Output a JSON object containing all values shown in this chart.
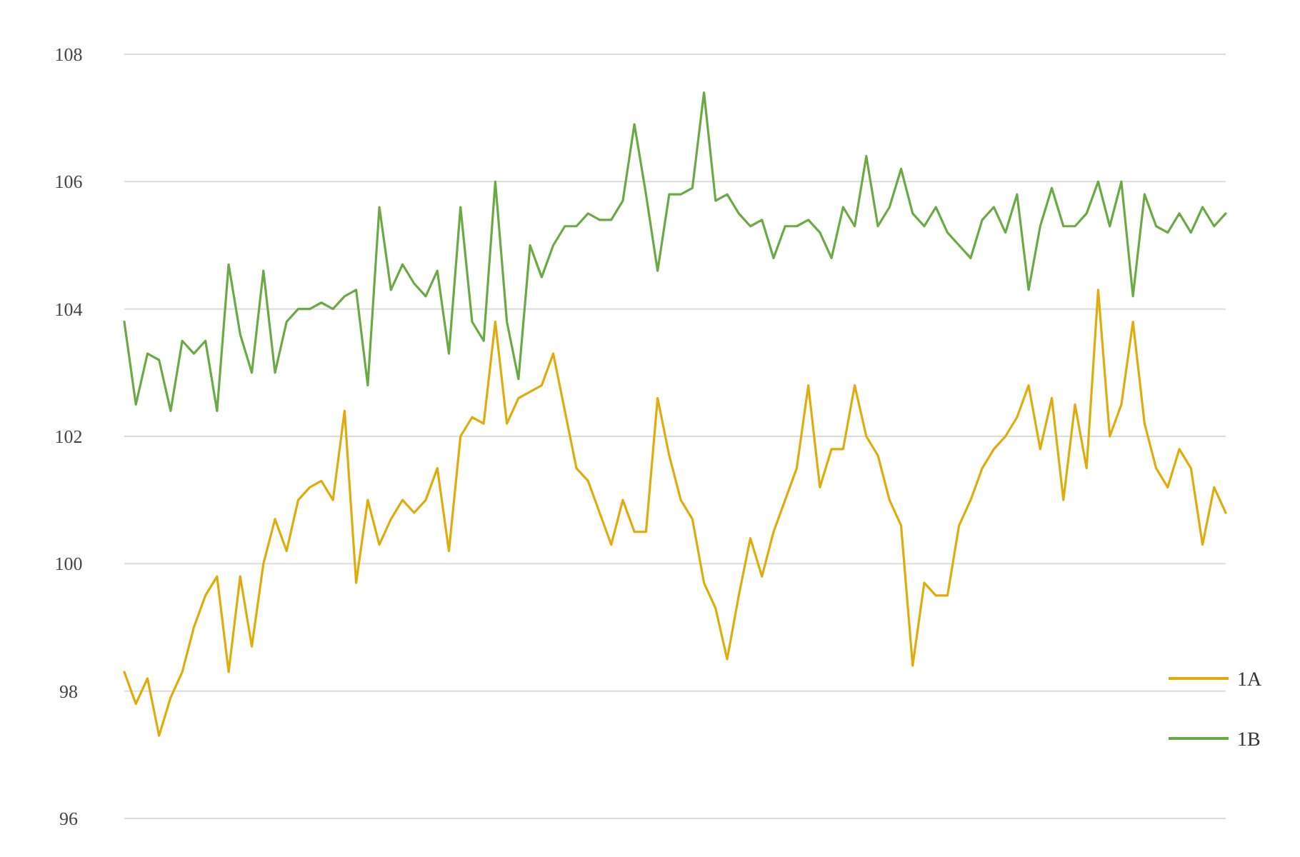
{
  "chart_data": {
    "type": "line",
    "categories": [
      null,
      null,
      null,
      null,
      null,
      null,
      null,
      null,
      null,
      null,
      null,
      null,
      null,
      null,
      null,
      null,
      null,
      null,
      null,
      null,
      null,
      null,
      null,
      null,
      null,
      null,
      null,
      null,
      null,
      null,
      null,
      null,
      null,
      null,
      null,
      null,
      null,
      null,
      null,
      null,
      null,
      null,
      null,
      null,
      null,
      null,
      null,
      null,
      null,
      null,
      null,
      null,
      null,
      null,
      null,
      null,
      null,
      null,
      null,
      null,
      null,
      null,
      null,
      null,
      null,
      null,
      null,
      null,
      null,
      null,
      null,
      null,
      null,
      null,
      null,
      null,
      null,
      null,
      null,
      null,
      null,
      null,
      null,
      null,
      null,
      null,
      null,
      null,
      null,
      null,
      null,
      null,
      null,
      null,
      null,
      null
    ],
    "series": [
      {
        "name": "1A",
        "color": "#e0ac0c",
        "values": [
          98.3,
          97.8,
          98.2,
          97.3,
          97.9,
          98.3,
          99,
          99.5,
          99.8,
          98.3,
          99.8,
          98.7,
          100,
          100.7,
          100.2,
          101,
          101.2,
          101.3,
          101,
          102.4,
          99.7,
          101,
          100.3,
          100.7,
          101,
          100.8,
          101,
          101.5,
          100.2,
          102,
          102.3,
          102.2,
          103.8,
          102.2,
          102.6,
          102.7,
          102.8,
          103.3,
          102.4,
          101.5,
          101.3,
          100.8,
          100.3,
          101,
          100.5,
          100.5,
          102.6,
          101.7,
          101,
          100.7,
          99.7,
          99.3,
          98.5,
          99.5,
          100.4,
          99.8,
          100.5,
          101,
          101.5,
          102.8,
          101.2,
          101.8,
          101.8,
          102.8,
          102,
          101.7,
          101,
          100.6,
          98.4,
          99.7,
          99.5,
          99.5,
          100.6,
          101,
          101.5,
          101.8,
          102,
          102.3,
          102.8,
          101.8,
          102.6,
          101,
          102.5,
          101.5,
          104.3,
          102,
          102.5,
          103.8,
          102.2,
          101.5,
          101.2,
          101.8,
          101.5,
          100.3,
          101.2,
          100.8
        ]
      },
      {
        "name": "1B",
        "color": "#6aaa44",
        "values": [
          103.8,
          102.5,
          103.3,
          103.2,
          102.4,
          103.5,
          103.3,
          103.5,
          102.4,
          104.7,
          103.6,
          103,
          104.6,
          103,
          103.8,
          104,
          104,
          104.1,
          104,
          104.2,
          104.3,
          102.8,
          105.6,
          104.3,
          104.7,
          104.4,
          104.2,
          104.6,
          103.3,
          105.6,
          103.8,
          103.5,
          106,
          103.8,
          102.9,
          105,
          104.5,
          105,
          105.3,
          105.3,
          105.5,
          105.4,
          105.4,
          105.7,
          106.9,
          105.8,
          104.6,
          105.8,
          105.8,
          105.9,
          107.4,
          105.7,
          105.8,
          105.5,
          105.3,
          105.4,
          104.8,
          105.3,
          105.3,
          105.4,
          105.2,
          104.8,
          105.6,
          105.3,
          106.4,
          105.3,
          105.6,
          106.2,
          105.5,
          105.3,
          105.6,
          105.2,
          105,
          104.8,
          105.4,
          105.6,
          105.2,
          105.8,
          104.3,
          105.3,
          105.9,
          105.3,
          105.3,
          105.5,
          106,
          105.3,
          106,
          104.2,
          105.8,
          105.3,
          105.2,
          105.5,
          105.2,
          105.6,
          105.3,
          105.5
        ]
      }
    ],
    "ylim": [
      96,
      108
    ],
    "yticks": [
      96,
      98,
      100,
      102,
      104,
      106,
      108
    ],
    "grid": "y",
    "legend": "bottom right",
    "tick_labels": "y"
  }
}
